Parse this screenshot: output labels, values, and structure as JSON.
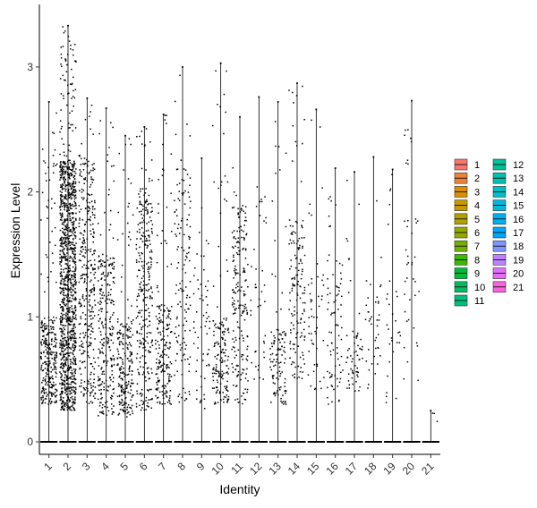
{
  "chart_data": {
    "type": "violin",
    "xlabel": "Identity",
    "ylabel": "Expression Level",
    "categories": [
      "1",
      "2",
      "3",
      "4",
      "5",
      "6",
      "7",
      "8",
      "9",
      "10",
      "11",
      "12",
      "13",
      "14",
      "15",
      "16",
      "17",
      "18",
      "19",
      "20",
      "21"
    ],
    "yticks": [
      0,
      1,
      2,
      3
    ],
    "ylim": [
      -0.1,
      3.5
    ],
    "grid": false,
    "legend_position": "right",
    "point_color": "#000000",
    "series": [
      {
        "name": "1",
        "color": "#F8766D",
        "max": 2.72,
        "dense_low": 0.3,
        "dense_high": 1.0,
        "n_points": 300
      },
      {
        "name": "2",
        "color": "#EC8239",
        "max": 3.33,
        "dense_low": 0.25,
        "dense_high": 2.25,
        "n_points": 1200
      },
      {
        "name": "3",
        "color": "#DB8E00",
        "max": 2.75,
        "dense_low": 0.3,
        "dense_high": 2.3,
        "n_points": 350
      },
      {
        "name": "4",
        "color": "#C79800",
        "max": 2.67,
        "dense_low": 0.2,
        "dense_high": 1.5,
        "n_points": 260
      },
      {
        "name": "5",
        "color": "#AFA100",
        "max": 2.45,
        "dense_low": 0.2,
        "dense_high": 1.0,
        "n_points": 220
      },
      {
        "name": "6",
        "color": "#94AA00",
        "max": 2.52,
        "dense_low": 0.25,
        "dense_high": 2.0,
        "n_points": 300
      },
      {
        "name": "7",
        "color": "#72B000",
        "max": 2.62,
        "dense_low": 0.3,
        "dense_high": 1.1,
        "n_points": 200
      },
      {
        "name": "8",
        "color": "#3DB700",
        "max": 3.0,
        "dense_low": 0.3,
        "dense_high": 2.2,
        "n_points": 140
      },
      {
        "name": "9",
        "color": "#00BA38",
        "max": 2.27,
        "dense_low": 0.25,
        "dense_high": 1.5,
        "n_points": 60
      },
      {
        "name": "10",
        "color": "#00BD5F",
        "max": 3.03,
        "dense_low": 0.3,
        "dense_high": 1.0,
        "n_points": 160
      },
      {
        "name": "11",
        "color": "#00BF7D",
        "max": 2.6,
        "dense_low": 0.3,
        "dense_high": 1.9,
        "n_points": 200
      },
      {
        "name": "12",
        "color": "#00C097",
        "max": 2.76,
        "dense_low": 0.5,
        "dense_high": 2.1,
        "n_points": 40
      },
      {
        "name": "13",
        "color": "#00C0B0",
        "max": 2.72,
        "dense_low": 0.3,
        "dense_high": 0.9,
        "n_points": 110
      },
      {
        "name": "14",
        "color": "#00BDC7",
        "max": 2.87,
        "dense_low": 0.5,
        "dense_high": 1.8,
        "n_points": 150
      },
      {
        "name": "15",
        "color": "#00B8DC",
        "max": 2.66,
        "dense_low": 0.4,
        "dense_high": 1.5,
        "n_points": 50
      },
      {
        "name": "16",
        "color": "#00B0EE",
        "max": 2.19,
        "dense_low": 0.3,
        "dense_high": 1.5,
        "n_points": 80
      },
      {
        "name": "17",
        "color": "#00A5FF",
        "max": 2.16,
        "dense_low": 0.4,
        "dense_high": 0.9,
        "n_points": 60
      },
      {
        "name": "18",
        "color": "#7F96FF",
        "max": 2.28,
        "dense_low": 0.4,
        "dense_high": 1.3,
        "n_points": 40
      },
      {
        "name": "19",
        "color": "#BC81FF",
        "max": 2.18,
        "dense_low": 0.3,
        "dense_high": 1.3,
        "n_points": 30
      },
      {
        "name": "20",
        "color": "#E26EF7",
        "max": 2.73,
        "dense_low": 0.4,
        "dense_high": 2.5,
        "n_points": 40
      },
      {
        "name": "21",
        "color": "#F863DF",
        "max": 0.25,
        "dense_low": 0.05,
        "dense_high": 0.25,
        "n_points": 3
      }
    ],
    "extra_legend_colors": {
      "22": "#FF62BC",
      "23": "#FF6A98"
    }
  }
}
